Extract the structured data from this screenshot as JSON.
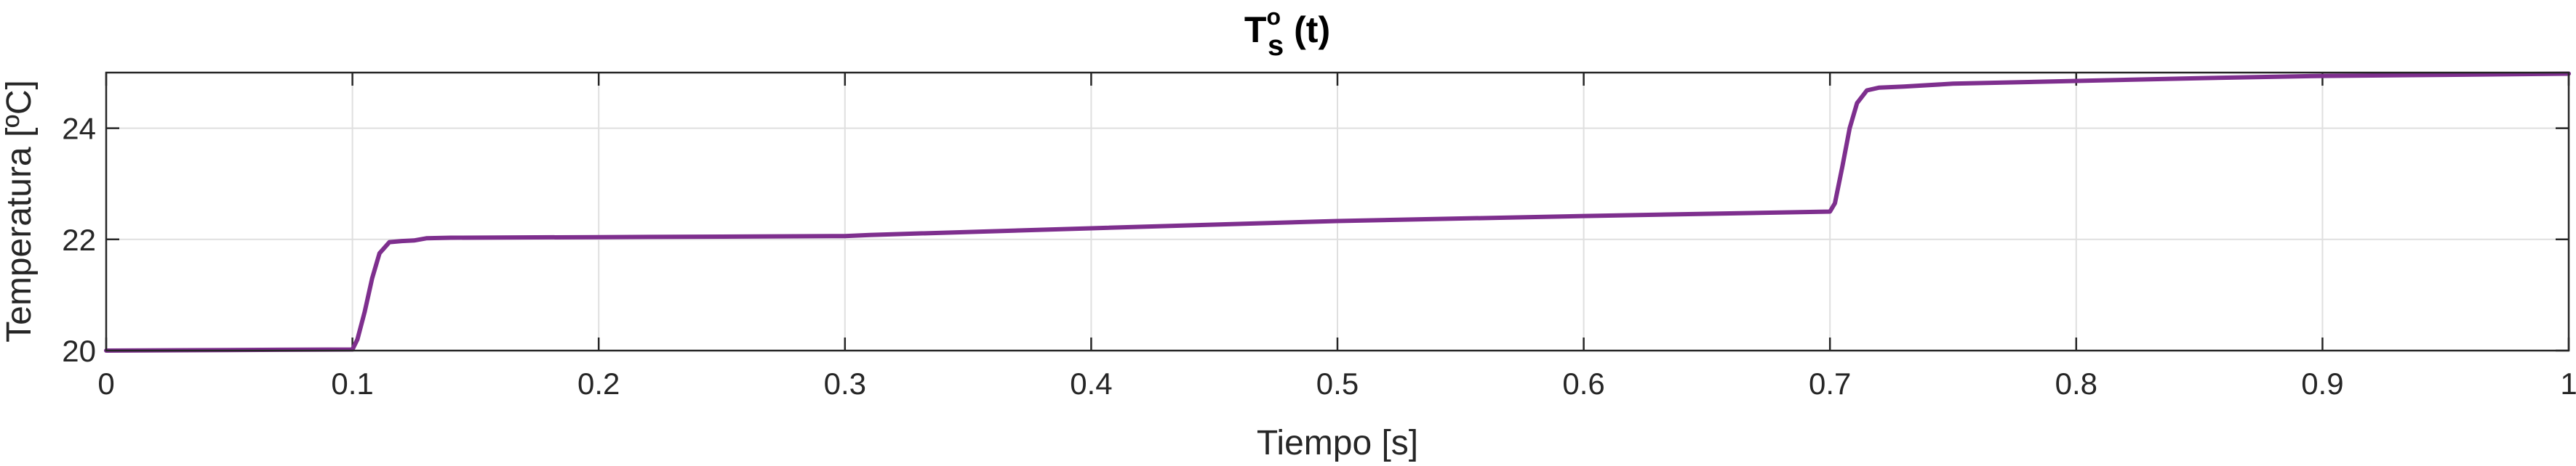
{
  "chart_data": {
    "type": "line",
    "title": {
      "base": "T",
      "superscript": "o",
      "subscript": "s",
      "suffix": " (t)"
    },
    "xlabel": "Tiempo [s]",
    "ylabel": "Temperatura [ºC]",
    "xlim": [
      0,
      1
    ],
    "ylim": [
      20,
      25
    ],
    "xticks": [
      0,
      0.1,
      0.2,
      0.3,
      0.4,
      0.5,
      0.6,
      0.7,
      0.8,
      0.9,
      1
    ],
    "xtick_labels": [
      "0",
      "0.1",
      "0.2",
      "0.3",
      "0.4",
      "0.5",
      "0.6",
      "0.7",
      "0.8",
      "0.9",
      "1"
    ],
    "yticks": [
      20,
      22,
      24
    ],
    "ytick_labels": [
      "20",
      "22",
      "24"
    ],
    "grid": true,
    "series": [
      {
        "color": "#7e2f8e",
        "x": [
          0,
          0.05,
          0.1,
          0.102,
          0.105,
          0.108,
          0.111,
          0.115,
          0.12,
          0.125,
          0.13,
          0.14,
          0.2,
          0.25,
          0.3,
          0.31,
          0.4,
          0.5,
          0.6,
          0.7,
          0.702,
          0.705,
          0.708,
          0.711,
          0.715,
          0.72,
          0.73,
          0.75,
          0.8,
          0.85,
          0.9,
          0.95,
          1.0
        ],
        "y": [
          20.0,
          20.01,
          20.02,
          20.2,
          20.7,
          21.3,
          21.75,
          21.95,
          21.97,
          21.98,
          22.02,
          22.03,
          22.04,
          22.05,
          22.06,
          22.08,
          22.2,
          22.33,
          22.42,
          22.5,
          22.65,
          23.3,
          24.0,
          24.45,
          24.68,
          24.73,
          24.75,
          24.8,
          24.85,
          24.9,
          24.94,
          24.96,
          24.98
        ]
      }
    ]
  }
}
